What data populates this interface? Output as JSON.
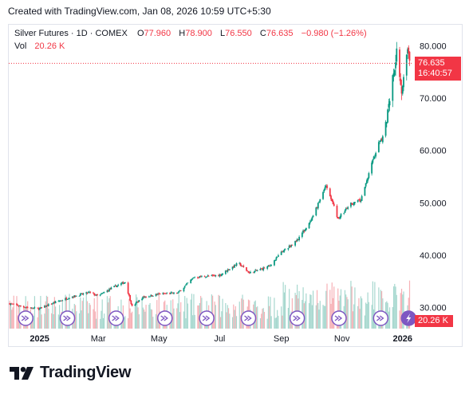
{
  "caption": "Created with TradingView.com, Jan 08, 2026 10:59 UTC+5:30",
  "legend": {
    "title": "Silver Futures · 1D · COMEX",
    "open_key": "O",
    "open": "77.960",
    "high_key": "H",
    "high": "78.900",
    "low_key": "L",
    "low": "76.550",
    "close_key": "C",
    "close": "76.635",
    "change": "−0.980 (−1.26%)",
    "vol_key": "Vol",
    "vol": "20.26 K"
  },
  "price_tag": {
    "price": "76.635",
    "countdown": "16:40:57"
  },
  "vol_tag": "20.26 K",
  "brand": "TradingView",
  "colors": {
    "up": "#089981",
    "down": "#f23645",
    "vol_up": "#a7d8cf",
    "vol_down": "#f6b1b6",
    "event": "#7e57c2"
  },
  "chart_data": {
    "type": "candlestick",
    "instrument": "Silver Futures",
    "interval": "1D",
    "exchange": "COMEX",
    "y_ticks": [
      30,
      40,
      50,
      60,
      70,
      80
    ],
    "y_tick_labels": [
      "30.000",
      "40.000",
      "50.000",
      "60.000",
      "70.000",
      "80.000"
    ],
    "ylim": [
      26,
      84
    ],
    "x_ticks": [
      "2025",
      "Mar",
      "May",
      "Jul",
      "Sep",
      "Nov",
      "2026"
    ],
    "x_tick_dates": [
      "2025-01-01",
      "2025-03-01",
      "2025-05-01",
      "2025-07-01",
      "2025-09-01",
      "2025-11-01",
      "2026-01-01"
    ],
    "x_range": [
      "2024-12-01",
      "2026-01-10"
    ],
    "last_price": 76.635,
    "ohlc_last": {
      "open": 77.96,
      "high": 78.9,
      "low": 76.55,
      "close": 76.635
    },
    "close_path": [
      [
        "2024-12-01",
        30.8
      ],
      [
        "2024-12-20",
        30.0
      ],
      [
        "2025-01-01",
        29.8
      ],
      [
        "2025-01-15",
        30.9
      ],
      [
        "2025-02-01",
        32.0
      ],
      [
        "2025-02-20",
        32.9
      ],
      [
        "2025-03-01",
        32.2
      ],
      [
        "2025-03-15",
        33.8
      ],
      [
        "2025-03-28",
        34.9
      ],
      [
        "2025-04-04",
        30.2
      ],
      [
        "2025-04-15",
        32.0
      ],
      [
        "2025-05-01",
        32.6
      ],
      [
        "2025-05-20",
        32.8
      ],
      [
        "2025-06-05",
        35.8
      ],
      [
        "2025-06-20",
        36.0
      ],
      [
        "2025-07-01",
        36.2
      ],
      [
        "2025-07-20",
        38.5
      ],
      [
        "2025-07-31",
        36.6
      ],
      [
        "2025-08-20",
        37.9
      ],
      [
        "2025-09-01",
        40.5
      ],
      [
        "2025-09-15",
        42.5
      ],
      [
        "2025-10-01",
        46.5
      ],
      [
        "2025-10-16",
        53.5
      ],
      [
        "2025-10-28",
        47.0
      ],
      [
        "2025-11-10",
        49.8
      ],
      [
        "2025-11-20",
        50.5
      ],
      [
        "2025-12-01",
        57.5
      ],
      [
        "2025-12-15",
        65.0
      ],
      [
        "2025-12-26",
        79.0
      ],
      [
        "2025-12-31",
        71.5
      ],
      [
        "2026-01-05",
        79.5
      ],
      [
        "2026-01-08",
        76.635
      ]
    ],
    "volume": {
      "last": "20.26 K",
      "approx_max_k": 48
    },
    "event_markers": [
      "2024-12-18",
      "2025-01-29",
      "2025-03-19",
      "2025-05-07",
      "2025-06-18",
      "2025-07-30",
      "2025-09-17",
      "2025-10-29",
      "2025-12-10",
      "2026-01-07"
    ]
  }
}
